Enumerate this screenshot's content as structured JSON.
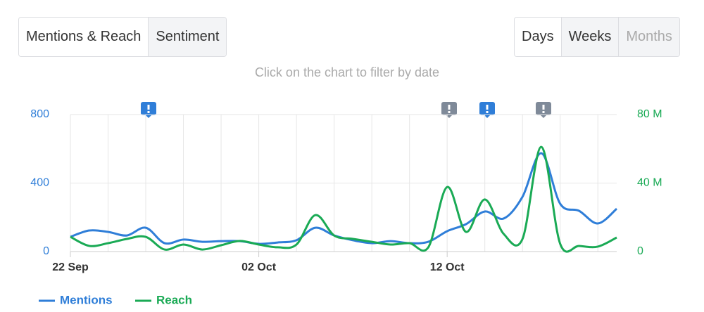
{
  "tabs": [
    "Mentions & Reach",
    "Sentiment"
  ],
  "periods": [
    "Days",
    "Weeks",
    "Months"
  ],
  "chart_data": {
    "type": "line",
    "subtitle": "Click on the chart to filter by date",
    "categories": [
      "22 Sep",
      null,
      null,
      null,
      null,
      null,
      null,
      null,
      null,
      null,
      "02 Oct",
      null,
      null,
      null,
      null,
      null,
      null,
      null,
      null,
      null,
      "12 Oct",
      null,
      null,
      null,
      null,
      null,
      null,
      null,
      null,
      null
    ],
    "ylim": [
      0,
      800
    ],
    "yticks": [
      0,
      400,
      800
    ],
    "y2lim": [
      0,
      80
    ],
    "y2ticks": [
      0,
      {
        "value": 40,
        "label": "40 M"
      },
      {
        "value": 80,
        "label": "80 M"
      }
    ],
    "grid": true,
    "series": [
      {
        "name": "Mentions",
        "color": "#2f7ed8",
        "values": [
          86,
          123,
          115,
          94,
          139,
          49,
          70,
          57,
          61,
          61,
          45,
          53,
          66,
          139,
          94,
          66,
          49,
          61,
          49,
          57,
          119,
          160,
          234,
          193,
          320,
          574,
          279,
          238,
          164,
          250
        ]
      },
      {
        "name": "Reach",
        "color": "#1aaa55",
        "axis": "y2",
        "values": [
          8.6,
          3.3,
          4.9,
          7.4,
          8.6,
          1.2,
          4.1,
          1.2,
          3.7,
          6.2,
          4.1,
          2.5,
          4.1,
          21.3,
          9.4,
          7.4,
          5.7,
          4.1,
          4.9,
          2.5,
          37.7,
          11.5,
          30.4,
          10.3,
          7.4,
          61.1,
          4.5,
          3.3,
          2.9,
          8.2
        ]
      }
    ]
  }
}
